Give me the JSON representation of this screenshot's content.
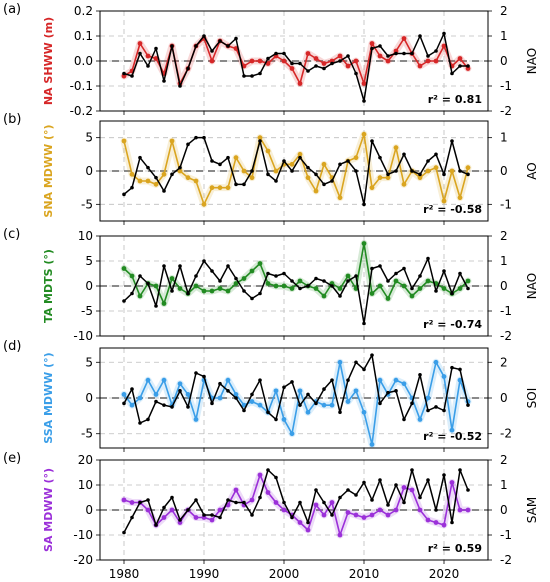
{
  "chart_data": [
    {
      "type": "line",
      "panel_label": "(a)",
      "ylabel": "NA SHWW (m)",
      "ylabel_right": "NAO",
      "r2": "r² = 0.81",
      "color": "#d62728",
      "ylim": [
        -0.2,
        0.2
      ],
      "yticks": [
        "-0.2",
        "-0.1",
        "0.0",
        "0.1",
        "0.2"
      ],
      "ylim_right": [
        -2,
        2
      ],
      "yticks_right": [
        "-2",
        "-1",
        "0",
        "1",
        "2"
      ],
      "x": [
        1980,
        1981,
        1982,
        1983,
        1984,
        1985,
        1986,
        1987,
        1988,
        1989,
        1990,
        1991,
        1992,
        1993,
        1994,
        1995,
        1996,
        1997,
        1998,
        1999,
        2000,
        2001,
        2002,
        2003,
        2004,
        2005,
        2006,
        2007,
        2008,
        2009,
        2010,
        2011,
        2012,
        2013,
        2014,
        2015,
        2016,
        2017,
        2018,
        2019,
        2020,
        2021,
        2022,
        2023
      ],
      "series": [
        {
          "values": [
            -0.06,
            -0.04,
            0.07,
            0.02,
            0.01,
            -0.05,
            0.06,
            -0.09,
            -0.03,
            0.06,
            0.09,
            0.0,
            0.08,
            0.06,
            0.05,
            -0.02,
            0.0,
            0.0,
            -0.01,
            0.02,
            0.0,
            -0.03,
            -0.09,
            0.03,
            0.01,
            -0.01,
            0.0,
            0.02,
            -0.02,
            0.0,
            -0.09,
            0.07,
            0.02,
            0.0,
            0.04,
            0.09,
            0.03,
            -0.02,
            0.0,
            0.0,
            0.06,
            -0.02,
            0.01,
            -0.03
          ],
          "axis": "left"
        },
        {
          "name": "NAO",
          "values": [
            -0.5,
            -0.6,
            0.3,
            -0.2,
            0.5,
            -0.8,
            0.6,
            -1.0,
            -0.3,
            0.6,
            1.0,
            0.4,
            0.8,
            0.6,
            0.9,
            -0.6,
            -0.6,
            -0.5,
            0.1,
            0.3,
            0.3,
            -0.1,
            -0.1,
            -0.4,
            -0.2,
            -0.3,
            -0.1,
            0.0,
            0.2,
            -0.5,
            -1.6,
            0.5,
            0.6,
            0.2,
            0.3,
            0.3,
            0.3,
            1.0,
            0.2,
            0.4,
            1.1,
            -0.5,
            -0.2,
            -0.2
          ],
          "axis": "right"
        }
      ]
    },
    {
      "type": "line",
      "panel_label": "(b)",
      "ylabel": "SNA MDWW (°)",
      "ylabel_right": "AO",
      "r2": "r² = -0.58",
      "color": "#daa520",
      "ylim": [
        -7.5,
        7.5
      ],
      "yticks": [
        "-5",
        "0",
        "5"
      ],
      "ylim_right": [
        -1.5,
        1.5
      ],
      "yticks_right": [
        "-1",
        "0",
        "1"
      ],
      "x": [
        1980,
        1981,
        1982,
        1983,
        1984,
        1985,
        1986,
        1987,
        1988,
        1989,
        1990,
        1991,
        1992,
        1993,
        1994,
        1995,
        1996,
        1997,
        1998,
        1999,
        2000,
        2001,
        2002,
        2003,
        2004,
        2005,
        2006,
        2007,
        2008,
        2009,
        2010,
        2011,
        2012,
        2013,
        2014,
        2015,
        2016,
        2017,
        2018,
        2019,
        2020,
        2021,
        2022,
        2023
      ],
      "series": [
        {
          "values": [
            4.5,
            -0.5,
            -1.5,
            -1.5,
            -2.0,
            -0.5,
            4.5,
            0.0,
            -1.0,
            -1.5,
            -5.0,
            -2.5,
            -2.5,
            -2.5,
            2.0,
            0.0,
            -1.0,
            5.0,
            3.0,
            0.0,
            1.0,
            1.0,
            2.5,
            -1.0,
            -3.0,
            1.0,
            -1.0,
            -4.0,
            1.5,
            2.0,
            5.5,
            -2.5,
            -1.0,
            -1.0,
            3.5,
            -2.0,
            0.0,
            -1.0,
            0.0,
            0.5,
            -4.5,
            0.0,
            -4.0,
            0.5
          ],
          "axis": "left"
        },
        {
          "name": "AO",
          "values": [
            -0.7,
            -0.5,
            0.4,
            0.1,
            -0.2,
            -0.6,
            -0.1,
            0.1,
            0.8,
            1.0,
            1.0,
            0.3,
            0.2,
            0.4,
            -0.4,
            -0.4,
            0.0,
            0.9,
            -0.1,
            -0.3,
            0.3,
            0.0,
            0.4,
            0.1,
            -0.1,
            -0.4,
            -0.3,
            0.2,
            0.3,
            0.0,
            -1.0,
            0.9,
            0.4,
            -0.1,
            0.0,
            0.5,
            0.0,
            -0.1,
            0.3,
            0.5,
            -0.1,
            0.9,
            0.0,
            -0.1
          ],
          "axis": "right"
        }
      ]
    },
    {
      "type": "line",
      "panel_label": "(c)",
      "ylabel": "TA MDTS (°)",
      "ylabel_right": "NAO",
      "r2": "r² = -0.74",
      "color": "#228b22",
      "ylim": [
        -10,
        10
      ],
      "yticks": [
        "-10",
        "-5",
        "0",
        "5",
        "10"
      ],
      "ylim_right": [
        -2,
        2
      ],
      "yticks_right": [
        "-2",
        "-1",
        "0",
        "1",
        "2"
      ],
      "x": [
        1980,
        1981,
        1982,
        1983,
        1984,
        1985,
        1986,
        1987,
        1988,
        1989,
        1990,
        1991,
        1992,
        1993,
        1994,
        1995,
        1996,
        1997,
        1998,
        1999,
        2000,
        2001,
        2002,
        2003,
        2004,
        2005,
        2006,
        2007,
        2008,
        2009,
        2010,
        2011,
        2012,
        2013,
        2014,
        2015,
        2016,
        2017,
        2018,
        2019,
        2020,
        2021,
        2022,
        2023
      ],
      "series": [
        {
          "values": [
            3.5,
            2.0,
            -2.0,
            0.5,
            0.0,
            -3.5,
            1.5,
            -0.5,
            -1.5,
            0.0,
            -1.0,
            -1.0,
            -0.5,
            -1.0,
            0.5,
            1.5,
            3.0,
            4.5,
            0.5,
            0.0,
            0.0,
            -0.5,
            1.0,
            0.0,
            -0.5,
            -2.0,
            0.5,
            -0.5,
            2.0,
            -0.5,
            8.5,
            -1.5,
            0.0,
            -2.5,
            1.0,
            0.0,
            -2.0,
            -0.5,
            1.0,
            0.5,
            -0.5,
            -1.5,
            -0.5,
            1.0
          ],
          "axis": "left"
        },
        {
          "name": "NAO",
          "values": [
            -0.6,
            -0.3,
            0.4,
            0.1,
            -0.8,
            0.8,
            -0.2,
            0.8,
            -0.3,
            0.4,
            1.0,
            0.6,
            0.2,
            0.8,
            0.3,
            -0.2,
            -0.5,
            -0.3,
            0.5,
            0.4,
            0.5,
            0.2,
            -0.1,
            0.0,
            0.3,
            0.2,
            0.0,
            -0.4,
            0.2,
            0.4,
            -1.5,
            0.7,
            0.8,
            0.2,
            0.5,
            0.7,
            -0.1,
            0.4,
            1.1,
            -0.2,
            0.6,
            -0.3,
            0.5,
            -0.1
          ],
          "axis": "right"
        }
      ]
    },
    {
      "type": "line",
      "panel_label": "(d)",
      "ylabel": "SSA MDWW (°)",
      "ylabel_right": "SOI",
      "r2": "r² = -0.52",
      "color": "#3a9ee8",
      "ylim": [
        -7,
        7
      ],
      "yticks": [
        "-5",
        "0",
        "5"
      ],
      "ylim_right": [
        -2.8,
        2.8
      ],
      "yticks_right": [
        "-2",
        "0",
        "2"
      ],
      "x": [
        1980,
        1981,
        1982,
        1983,
        1984,
        1985,
        1986,
        1987,
        1988,
        1989,
        1990,
        1991,
        1992,
        1993,
        1994,
        1995,
        1996,
        1997,
        1998,
        1999,
        2000,
        2001,
        2002,
        2003,
        2004,
        2005,
        2006,
        2007,
        2008,
        2009,
        2010,
        2011,
        2012,
        2013,
        2014,
        2015,
        2016,
        2017,
        2018,
        2019,
        2020,
        2021,
        2022,
        2023
      ],
      "series": [
        {
          "values": [
            0.5,
            -1.0,
            0.0,
            2.5,
            0.5,
            2.5,
            -1.0,
            2.0,
            0.5,
            -3.0,
            2.5,
            0.0,
            0.0,
            2.5,
            0.5,
            -1.0,
            -0.5,
            -1.0,
            -2.0,
            1.0,
            -3.0,
            -5.0,
            1.0,
            -2.0,
            -0.5,
            -1.0,
            -1.0,
            5.0,
            -0.5,
            1.0,
            -2.0,
            -6.5,
            2.5,
            0.5,
            2.5,
            2.0,
            0.0,
            -3.0,
            0.0,
            5.0,
            3.0,
            -4.5,
            2.5,
            -0.5
          ],
          "axis": "left"
        },
        {
          "name": "SOI",
          "values": [
            -0.3,
            0.5,
            -1.4,
            -1.2,
            -0.2,
            -0.4,
            -0.5,
            0.4,
            -0.5,
            1.4,
            1.2,
            -0.3,
            0.8,
            0.4,
            0.0,
            -0.7,
            0.2,
            1.0,
            -0.8,
            -1.2,
            0.6,
            0.9,
            -0.4,
            0.2,
            -0.3,
            0.5,
            1.0,
            -0.8,
            1.0,
            2.0,
            1.6,
            2.4,
            -0.3,
            0.3,
            0.4,
            -1.2,
            -0.3,
            1.3,
            -0.7,
            -0.5,
            -0.7,
            1.7,
            1.6,
            -0.4
          ],
          "axis": "right"
        }
      ]
    },
    {
      "type": "line",
      "panel_label": "(e)",
      "ylabel": "SA MDWW (°)",
      "ylabel_right": "SAM",
      "r2": "r² = 0.59",
      "color": "#9b30d9",
      "ylim": [
        -20,
        20
      ],
      "yticks": [
        "-20",
        "-10",
        "0",
        "10",
        "20"
      ],
      "ylim_right": [
        -2,
        2
      ],
      "yticks_right": [
        "-2",
        "-1",
        "0",
        "1",
        "2"
      ],
      "x": [
        1980,
        1981,
        1982,
        1983,
        1984,
        1985,
        1986,
        1987,
        1988,
        1989,
        1990,
        1991,
        1992,
        1993,
        1994,
        1995,
        1996,
        1997,
        1998,
        1999,
        2000,
        2001,
        2002,
        2003,
        2004,
        2005,
        2006,
        2007,
        2008,
        2009,
        2010,
        2011,
        2012,
        2013,
        2014,
        2015,
        2016,
        2017,
        2018,
        2019,
        2020,
        2021,
        2022,
        2023
      ],
      "series": [
        {
          "values": [
            4.0,
            3.0,
            3.0,
            0.0,
            -6.0,
            -3.0,
            0.0,
            -5.0,
            0.0,
            -3.0,
            -3.0,
            -4.0,
            0.0,
            2.0,
            8.0,
            2.0,
            4.0,
            14.0,
            7.0,
            3.0,
            0.0,
            -2.0,
            -5.0,
            -8.0,
            2.0,
            -2.0,
            3.0,
            -10.0,
            -1.0,
            -2.0,
            -3.0,
            -2.0,
            0.0,
            -2.0,
            0.0,
            9.0,
            8.0,
            0.0,
            -4.0,
            -5.0,
            -6.0,
            11.0,
            0.0,
            0.0
          ],
          "axis": "left"
        },
        {
          "name": "SAM",
          "values": [
            -0.9,
            -0.3,
            0.3,
            0.4,
            -0.6,
            0.1,
            0.5,
            -0.4,
            0.0,
            0.4,
            -0.2,
            -0.2,
            -0.3,
            0.4,
            0.3,
            0.3,
            -0.2,
            0.5,
            1.6,
            1.3,
            0.3,
            -0.3,
            0.3,
            -0.5,
            0.8,
            0.3,
            -0.2,
            0.5,
            0.8,
            0.6,
            1.1,
            0.4,
            1.2,
            0.2,
            1.0,
            0.3,
            1.6,
            0.5,
            1.2,
            0.0,
            1.4,
            -0.5,
            1.6,
            0.8
          ],
          "axis": "right"
        }
      ]
    }
  ],
  "xaxis": {
    "xlim": [
      1977,
      2025.5
    ],
    "ticks": [
      1980,
      1990,
      2000,
      2010,
      2020
    ],
    "tick_labels": [
      "1980",
      "1990",
      "2000",
      "2010",
      "2020"
    ]
  }
}
